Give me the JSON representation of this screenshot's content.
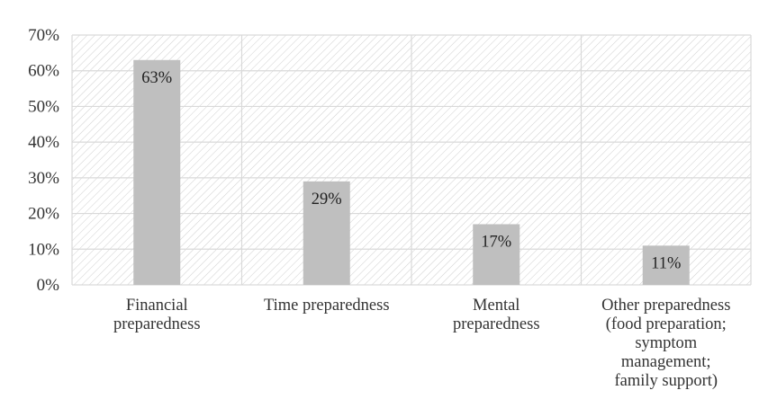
{
  "chart_data": {
    "type": "bar",
    "title": "",
    "xlabel": "",
    "ylabel": "",
    "categories": [
      [
        "Financial",
        "preparedness"
      ],
      [
        "Time preparedness"
      ],
      [
        "Mental",
        "preparedness"
      ],
      [
        "Other preparedness",
        "(food preparation;",
        "symptom",
        "management;",
        "family support)"
      ]
    ],
    "values": [
      63,
      29,
      17,
      11
    ],
    "data_labels": [
      "63%",
      "29%",
      "17%",
      "11%"
    ],
    "ylim": [
      0,
      70
    ],
    "yticks": [
      0,
      10,
      20,
      30,
      40,
      50,
      60,
      70
    ],
    "ytick_labels": [
      "0%",
      "10%",
      "20%",
      "30%",
      "40%",
      "50%",
      "60%",
      "70%"
    ],
    "grid": true,
    "legend": "none",
    "colors": {
      "bar": "#bfbfbf",
      "grid": "#d9d9d9",
      "hatch": "#d0d0d0",
      "text": "#333333"
    }
  }
}
